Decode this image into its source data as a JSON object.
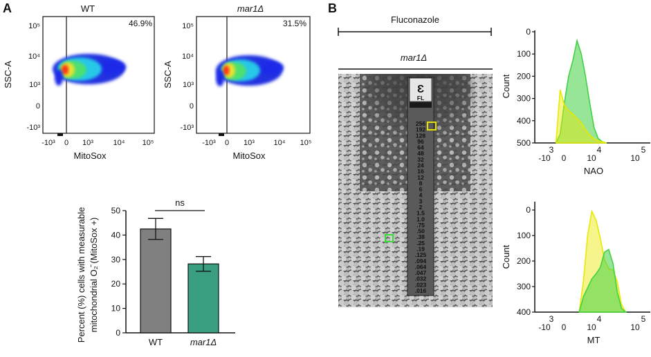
{
  "panels": {
    "a": "A",
    "b": "B"
  },
  "flow": [
    {
      "title": "WT",
      "title_italic": false,
      "percent": "46.9%",
      "y_label": "SSC-A",
      "x_label": "MitoSox",
      "y_ticks": [
        "10⁵",
        "10⁴",
        "10³",
        "0",
        "-10³"
      ],
      "x_ticks": [
        "-10³",
        "0",
        "10³",
        "10⁴",
        "10⁵"
      ]
    },
    {
      "title": "mar1Δ",
      "title_italic": true,
      "percent": "31.5%",
      "y_label": "SSC-A",
      "x_label": "MitoSox",
      "y_ticks": [
        "10⁵",
        "10⁴",
        "10³",
        "0",
        "-10³"
      ],
      "x_ticks": [
        "-10³",
        "0",
        "10³",
        "10⁴",
        "10⁵"
      ]
    }
  ],
  "bar_chart": {
    "y_label_line1": "Percent (%) cells with measurable",
    "y_label_line2": "mitochondrial O₂̄ (MitoSox +)",
    "significance": "ns",
    "colors": {
      "WT": "#808080",
      "mar1": "#3a9e80"
    }
  },
  "etest": {
    "fluconazole_label": "Fluconazole",
    "strain_label": "mar1Δ",
    "strip_logo": "Ɛ",
    "strip_code": "FL",
    "strip_values": [
      "256",
      "192",
      "128",
      "96",
      "64",
      "48",
      "32",
      "24",
      "16",
      "12",
      "8",
      "6",
      "4",
      "3",
      "2",
      "1.5",
      "1.0",
      ".75",
      ".50",
      ".38",
      ".25",
      ".19",
      ".125",
      ".094",
      ".064",
      ".047",
      ".032",
      ".023",
      ".016"
    ]
  },
  "histograms": [
    {
      "x_label": "NAO",
      "y_label": "Count",
      "y_ticks": [
        "500",
        "400",
        "300",
        "200",
        "100",
        "0"
      ],
      "x_ticks_top": [
        "3",
        "4",
        "5"
      ],
      "x_ticks_bottom": [
        "-10",
        "0",
        "10",
        "10"
      ]
    },
    {
      "x_label": "MT",
      "y_label": "Count",
      "y_ticks": [
        "400",
        "300",
        "200",
        "100",
        "0"
      ],
      "x_ticks_top": [
        "3",
        "4",
        "5"
      ],
      "x_ticks_bottom": [
        "-10",
        "0",
        "10",
        "10"
      ]
    }
  ],
  "chart_data": [
    {
      "type": "bar",
      "categories": [
        "WT",
        "mar1Δ"
      ],
      "values": [
        42.5,
        28.2
      ],
      "errors": [
        4.3,
        3.0
      ],
      "ylim": [
        0,
        50
      ],
      "yticks": [
        0,
        10,
        20,
        30,
        40,
        50
      ],
      "ylabel": "Percent (%) cells with measurable mitochondrial O₂̄ (MitoSox +)",
      "annotation": "ns",
      "grid": false
    },
    {
      "type": "area",
      "xlabel": "NAO",
      "ylabel": "Count",
      "ylim": [
        0,
        500
      ],
      "yticks": [
        0,
        100,
        200,
        300,
        400,
        500
      ],
      "x": [
        2.9,
        3.0,
        3.1,
        3.2,
        3.3,
        3.4,
        3.5,
        3.6,
        3.7,
        3.8,
        3.9,
        4.0,
        4.1
      ],
      "series": [
        {
          "color": "#41d141",
          "values": [
            0,
            40,
            180,
            300,
            370,
            460,
            400,
            300,
            180,
            70,
            20,
            5,
            0
          ]
        },
        {
          "color": "#e8e800",
          "values": [
            0,
            240,
            170,
            145,
            130,
            110,
            90,
            60,
            35,
            20,
            10,
            4,
            0
          ]
        }
      ]
    },
    {
      "type": "area",
      "xlabel": "MT",
      "ylabel": "Count",
      "ylim": [
        0,
        430
      ],
      "yticks": [
        0,
        100,
        200,
        300,
        400
      ],
      "x": [
        3.45,
        3.55,
        3.65,
        3.75,
        3.85,
        3.95,
        4.05,
        4.15,
        4.25,
        4.35,
        4.45,
        4.55
      ],
      "series": [
        {
          "color": "#41d141",
          "values": [
            0,
            60,
            95,
            130,
            150,
            175,
            235,
            245,
            190,
            80,
            15,
            0
          ]
        },
        {
          "color": "#e8e800",
          "values": [
            0,
            120,
            300,
            395,
            360,
            290,
            205,
            170,
            165,
            120,
            30,
            0
          ]
        }
      ]
    }
  ]
}
